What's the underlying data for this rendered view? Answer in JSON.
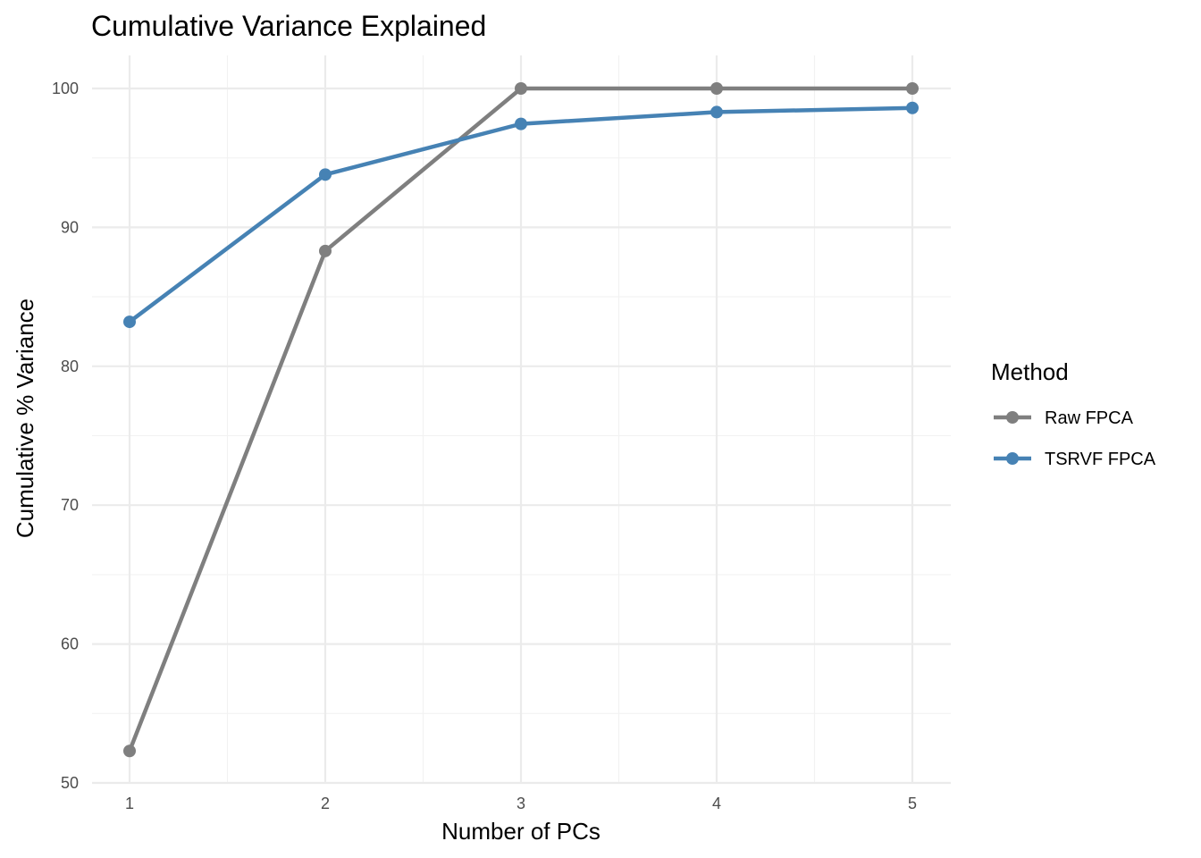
{
  "chart_data": {
    "type": "line",
    "title": "Cumulative Variance Explained",
    "xlabel": "Number of PCs",
    "ylabel": "Cumulative % Variance",
    "x": [
      1,
      2,
      3,
      4,
      5
    ],
    "xlim": [
      0.75,
      5.2
    ],
    "ylim": [
      50,
      102.5
    ],
    "x_ticks": [
      1,
      2,
      3,
      4,
      5
    ],
    "y_ticks": [
      50,
      60,
      70,
      80,
      90,
      100
    ],
    "grid": true,
    "legend": {
      "title": "Method",
      "position": "right"
    },
    "series": [
      {
        "name": "Raw FPCA",
        "color": "#7f7f7f",
        "values": [
          52.3,
          88.3,
          100,
          100,
          100
        ]
      },
      {
        "name": "TSRVF FPCA",
        "color": "#4682b4",
        "values": [
          83.2,
          93.8,
          97.45,
          98.3,
          98.6
        ]
      }
    ]
  }
}
